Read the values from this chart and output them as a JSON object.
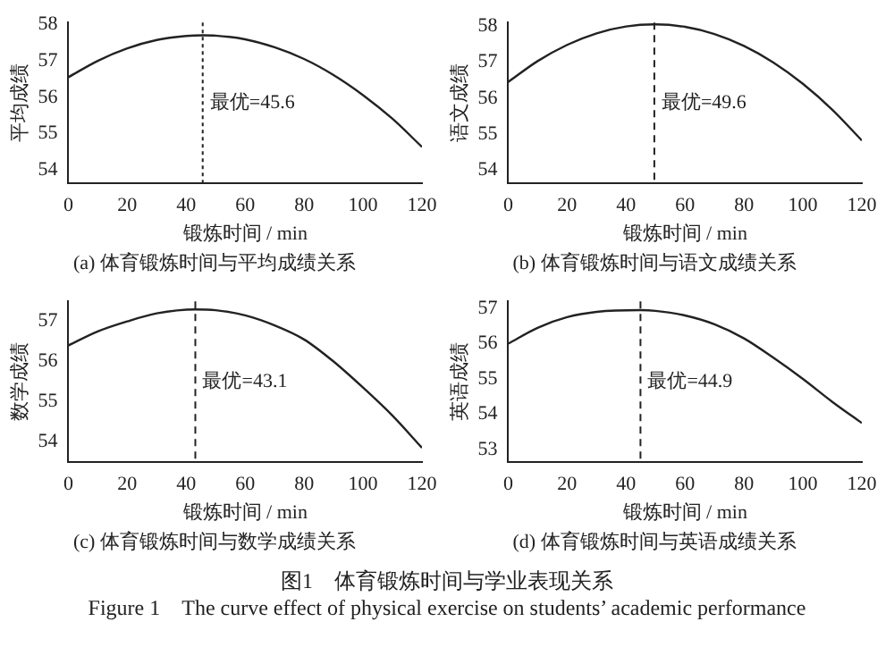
{
  "chart_data": [
    {
      "type": "line",
      "title": "(a) 体育锻炼时间与平均成绩关系",
      "xlabel": "锻炼时间 / min",
      "ylabel": "平均成绩",
      "color": "#222222",
      "x": [
        0,
        10,
        20,
        30,
        40,
        45.6,
        50,
        60,
        70,
        80,
        90,
        100,
        110,
        120
      ],
      "values": [
        56.55,
        57.0,
        57.34,
        57.57,
        57.68,
        57.7,
        57.69,
        57.59,
        57.37,
        57.05,
        56.61,
        56.06,
        55.41,
        54.64
      ],
      "xlim": [
        0,
        120
      ],
      "xticks": [
        0,
        20,
        40,
        60,
        80,
        100,
        120
      ],
      "ylim": [
        53.65,
        58.05
      ],
      "yticks": [
        54,
        55,
        56,
        57,
        58
      ],
      "grid": false,
      "ref_lines": [
        {
          "axis": "x",
          "value": 45.6,
          "label": "最优=45.6",
          "line_style": "dotted"
        }
      ]
    },
    {
      "type": "line",
      "title": "(b) 体育锻炼时间与语文成绩关系",
      "xlabel": "锻炼时间 / min",
      "ylabel": "语文成绩",
      "color": "#222222",
      "x": [
        0,
        10,
        20,
        30,
        40,
        49.6,
        50,
        60,
        70,
        80,
        90,
        100,
        110,
        120
      ],
      "values": [
        56.45,
        57.03,
        57.48,
        57.8,
        57.99,
        58.05,
        58.05,
        57.98,
        57.78,
        57.45,
        56.99,
        56.4,
        55.68,
        54.83
      ],
      "xlim": [
        0,
        120
      ],
      "xticks": [
        0,
        20,
        40,
        60,
        80,
        100,
        120
      ],
      "ylim": [
        53.65,
        58.1
      ],
      "yticks": [
        54,
        55,
        56,
        57,
        58
      ],
      "grid": false,
      "ref_lines": [
        {
          "axis": "x",
          "value": 49.6,
          "label": "最优=49.6",
          "line_style": "dashed"
        }
      ]
    },
    {
      "type": "line",
      "title": "(c) 体育锻炼时间与数学成绩关系",
      "xlabel": "锻炼时间 / min",
      "ylabel": "数学成绩",
      "color": "#222222",
      "x": [
        0,
        10,
        20,
        30,
        43.1,
        50,
        60,
        70,
        80,
        90,
        100,
        110,
        120
      ],
      "values": [
        56.4,
        56.75,
        57.0,
        57.2,
        57.3,
        57.28,
        57.15,
        56.9,
        56.55,
        56.0,
        55.35,
        54.65,
        53.85
      ],
      "xlim": [
        0,
        120
      ],
      "xticks": [
        0,
        20,
        40,
        60,
        80,
        100,
        120
      ],
      "ylim": [
        53.5,
        57.5
      ],
      "yticks": [
        54,
        55,
        56,
        57
      ],
      "grid": false,
      "ref_lines": [
        {
          "axis": "x",
          "value": 43.1,
          "label": "最优=43.1",
          "line_style": "dashed"
        }
      ]
    },
    {
      "type": "line",
      "title": "(d) 体育锻炼时间与英语成绩关系",
      "xlabel": "锻炼时间 / min",
      "ylabel": "英语成绩",
      "color": "#222222",
      "x": [
        0,
        10,
        20,
        30,
        44.9,
        50,
        60,
        70,
        80,
        90,
        100,
        110,
        120
      ],
      "values": [
        56.0,
        56.45,
        56.75,
        56.9,
        56.95,
        56.93,
        56.8,
        56.55,
        56.15,
        55.6,
        55.0,
        54.35,
        53.75
      ],
      "xlim": [
        0,
        120
      ],
      "xticks": [
        0,
        20,
        40,
        60,
        80,
        100,
        120
      ],
      "ylim": [
        52.65,
        57.2
      ],
      "yticks": [
        53,
        54,
        55,
        56,
        57
      ],
      "grid": false,
      "ref_lines": [
        {
          "axis": "x",
          "value": 44.9,
          "label": "最优=44.9",
          "line_style": "dashed"
        }
      ]
    },
    {
      "type": "other",
      "annotations": [
        "图1　体育锻炼时间与学业表现关系",
        "Figure 1　The curve effect of physical exercise on students’ academic performance"
      ]
    }
  ]
}
